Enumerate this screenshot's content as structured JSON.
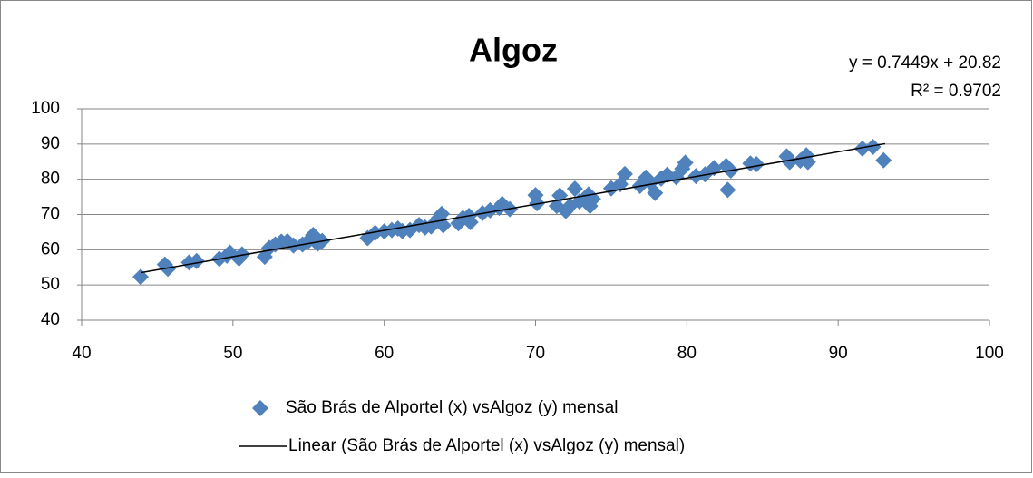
{
  "chart_data": {
    "type": "scatter",
    "title": "Algoz",
    "annotations": [
      "y = 0.7449x + 20.82",
      "R² = 0.9702"
    ],
    "xlim": [
      40,
      100
    ],
    "xticks": [
      40,
      50,
      60,
      70,
      80,
      90,
      100
    ],
    "ylim": [
      40,
      100
    ],
    "yticks": [
      40,
      50,
      60,
      70,
      80,
      90,
      100
    ],
    "grid": true,
    "legend": "bottom",
    "series": [
      {
        "name": "São Brás de Alportel (x) vsAlgoz (y) mensal",
        "color": "#4f81bd",
        "x": [
          43.9,
          45.5,
          45.7,
          47.1,
          47.6,
          49.1,
          49.6,
          49.8,
          50.4,
          50.6,
          52.1,
          52.4,
          52.8,
          53.2,
          53.6,
          54.0,
          54.6,
          55.0,
          55.3,
          55.6,
          55.9,
          58.9,
          59.4,
          60.0,
          60.5,
          60.9,
          61.2,
          61.7,
          62.3,
          62.7,
          63.1,
          63.6,
          63.8,
          63.9,
          64.9,
          65.2,
          65.6,
          65.7,
          66.5,
          67.0,
          67.6,
          67.8,
          68.3,
          70.0,
          70.1,
          71.4,
          71.6,
          72.0,
          72.3,
          72.6,
          72.9,
          73.5,
          73.6,
          73.8,
          75.0,
          75.6,
          75.9,
          76.9,
          77.3,
          77.6,
          77.9,
          78.3,
          78.7,
          79.3,
          79.7,
          79.9,
          80.6,
          81.2,
          81.8,
          82.6,
          82.7,
          82.9,
          84.2,
          84.6,
          86.6,
          86.8,
          87.5,
          87.9,
          88.0,
          91.6,
          92.3,
          93.0
        ],
        "values": [
          52.3,
          55.8,
          54.6,
          56.4,
          56.8,
          57.4,
          58.3,
          59.2,
          57.5,
          58.7,
          58.0,
          60.5,
          61.5,
          62.3,
          62.4,
          61.2,
          61.5,
          62.5,
          64.2,
          61.7,
          62.5,
          63.3,
          64.8,
          65.2,
          65.6,
          66.0,
          65.3,
          65.6,
          67.0,
          66.3,
          66.6,
          69.0,
          70.2,
          66.9,
          67.5,
          69.0,
          69.6,
          67.8,
          70.4,
          71.2,
          71.9,
          73.0,
          71.5,
          75.5,
          73.2,
          72.4,
          75.4,
          71.0,
          72.5,
          77.3,
          73.7,
          75.7,
          72.4,
          74.4,
          77.4,
          78.6,
          81.5,
          78.1,
          80.5,
          79.0,
          76.1,
          80.2,
          81.3,
          80.6,
          83.0,
          84.7,
          80.9,
          81.4,
          83.2,
          83.8,
          77.0,
          82.5,
          84.5,
          84.3,
          86.5,
          84.9,
          85.3,
          86.8,
          84.9,
          88.7,
          89.2,
          85.4
        ]
      },
      {
        "name": "Linear (São Brás de Alportel (x) vsAlgoz (y) mensal)",
        "color": "#000000",
        "x": [
          43.9,
          93.1
        ],
        "values": [
          53.5,
          90.1
        ]
      }
    ]
  }
}
